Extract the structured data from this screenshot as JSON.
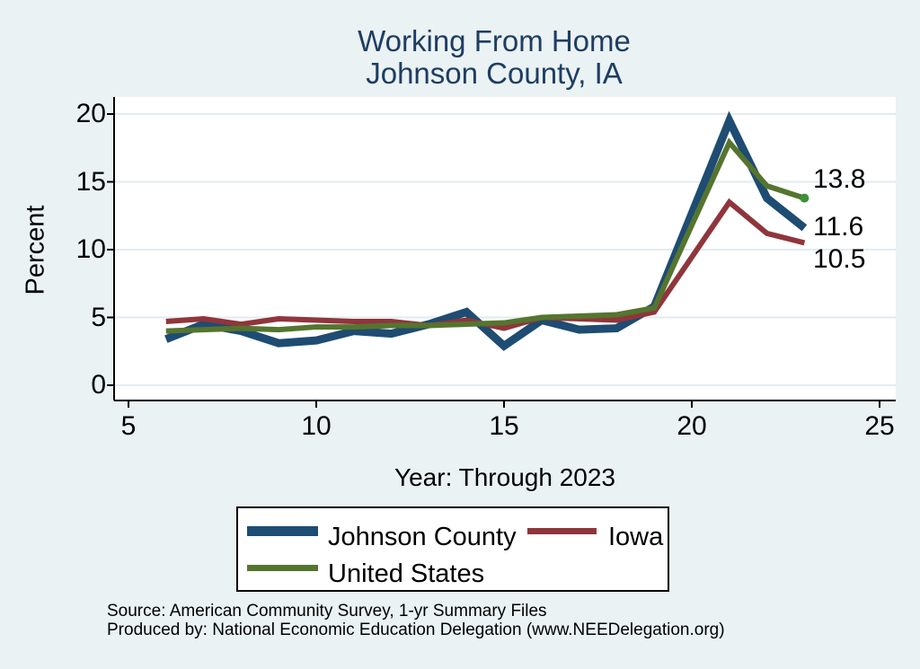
{
  "title": {
    "line1": "Working From Home",
    "line2": "Johnson County, IA"
  },
  "axes": {
    "y_label": "Percent",
    "x_label": "Year: Through 2023",
    "y_ticks": [
      0,
      5,
      10,
      15,
      20
    ],
    "x_ticks": [
      5,
      10,
      15,
      20,
      25
    ]
  },
  "chart_data": {
    "type": "line",
    "title": "Working From Home — Johnson County, IA",
    "xlabel": "Year: Through 2023",
    "ylabel": "Percent",
    "xlim": [
      5,
      25
    ],
    "ylim": [
      0,
      20
    ],
    "grid": "horizontal",
    "legend_position": "bottom",
    "x": [
      6,
      7,
      8,
      9,
      10,
      11,
      12,
      13,
      14,
      15,
      16,
      17,
      18,
      19,
      21,
      22,
      23
    ],
    "series": [
      {
        "name": "Johnson County",
        "color": "#1e4c72",
        "stroke_width": 9,
        "values": [
          3.4,
          4.5,
          4.0,
          3.1,
          3.3,
          4.0,
          3.8,
          4.5,
          5.4,
          2.9,
          4.8,
          4.1,
          4.2,
          5.8,
          19.5,
          13.8,
          11.6
        ]
      },
      {
        "name": "Iowa",
        "color": "#90353b",
        "stroke_width": 6,
        "values": [
          4.7,
          4.9,
          4.5,
          4.9,
          4.8,
          4.7,
          4.7,
          4.4,
          4.8,
          4.2,
          5.0,
          4.9,
          4.8,
          5.4,
          13.5,
          11.2,
          10.5
        ]
      },
      {
        "name": "United States",
        "color": "#55752f",
        "stroke_width": 6,
        "end_marker_color": "#3c9136",
        "values": [
          4.0,
          4.1,
          4.2,
          4.1,
          4.3,
          4.3,
          4.4,
          4.4,
          4.5,
          4.6,
          5.0,
          5.1,
          5.2,
          5.7,
          17.9,
          14.7,
          13.8
        ]
      }
    ],
    "end_labels": [
      {
        "text": "13.8",
        "series": "United States"
      },
      {
        "text": "11.6",
        "series": "Johnson County"
      },
      {
        "text": "10.5",
        "series": "Iowa"
      }
    ]
  },
  "legend": {
    "items": [
      {
        "label": "Johnson County",
        "color": "#1e4c72"
      },
      {
        "label": "Iowa",
        "color": "#90353b"
      },
      {
        "label": "United States",
        "color": "#55752f"
      }
    ]
  },
  "footer": {
    "line1": "Source: American Community Survey, 1-yr Summary Files",
    "line2": "Produced by: National Economic Education Delegation (www.NEEDelegation.org)"
  },
  "colors": {
    "background": "#eaf2f3",
    "plot_background": "#ffffff",
    "gridline": "#e2ebf2",
    "axis": "#000000",
    "title": "#1e3d63"
  }
}
